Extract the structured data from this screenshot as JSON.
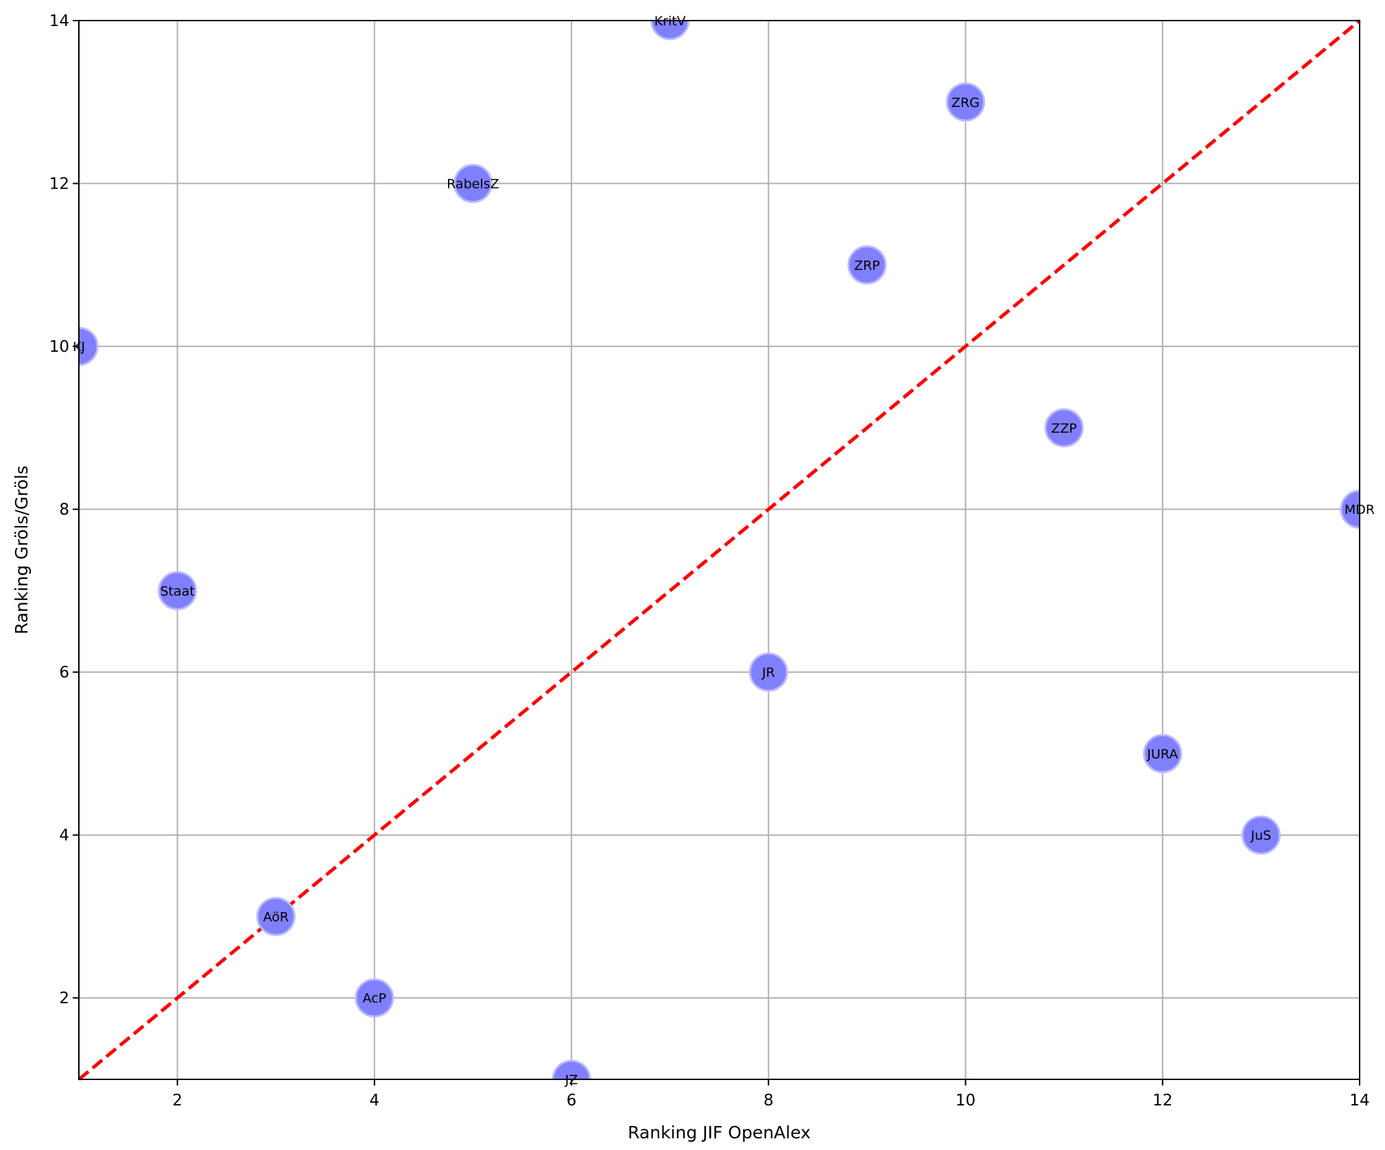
{
  "chart_data": {
    "type": "scatter",
    "title": "",
    "xlabel": "Ranking JIF OpenAlex",
    "ylabel": "Ranking Gröls/Gröls",
    "xlim": [
      1,
      14
    ],
    "ylim": [
      1,
      14
    ],
    "xticks": [
      2,
      4,
      6,
      8,
      10,
      12,
      14
    ],
    "yticks": [
      2,
      4,
      6,
      8,
      10,
      12,
      14
    ],
    "grid": true,
    "points": [
      {
        "label": "KJ",
        "x": 1,
        "y": 10
      },
      {
        "label": "Staat",
        "x": 2,
        "y": 7
      },
      {
        "label": "AöR",
        "x": 3,
        "y": 3
      },
      {
        "label": "AcP",
        "x": 4,
        "y": 2
      },
      {
        "label": "RabelsZ",
        "x": 5,
        "y": 12
      },
      {
        "label": "JZ",
        "x": 6,
        "y": 1
      },
      {
        "label": "KritV",
        "x": 7,
        "y": 14
      },
      {
        "label": "JR",
        "x": 8,
        "y": 6
      },
      {
        "label": "ZRP",
        "x": 9,
        "y": 11
      },
      {
        "label": "ZRG",
        "x": 10,
        "y": 13
      },
      {
        "label": "ZZP",
        "x": 11,
        "y": 9
      },
      {
        "label": "JURA",
        "x": 12,
        "y": 5
      },
      {
        "label": "JuS",
        "x": 13,
        "y": 4
      },
      {
        "label": "MDR",
        "x": 14,
        "y": 8
      }
    ],
    "reference_line": {
      "from": [
        1,
        1
      ],
      "to": [
        14,
        14
      ],
      "style": "dashed",
      "color": "#ff0000"
    },
    "marker_color": "#8080ff",
    "marker_edge_color": "#b9b9ff",
    "grid_color": "#b0b0b0"
  }
}
